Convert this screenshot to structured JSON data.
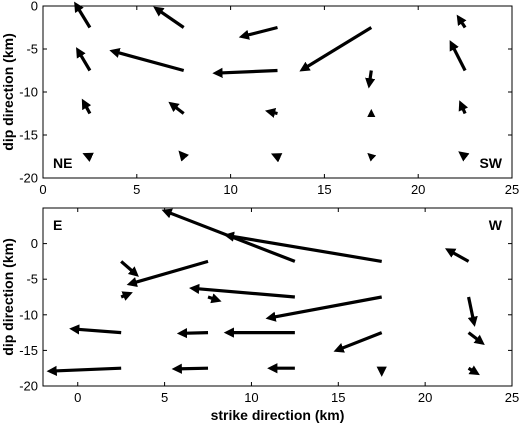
{
  "chart_data": [
    {
      "type": "quiver",
      "xlim": [
        0,
        25
      ],
      "ylim": [
        -20,
        0
      ],
      "x_ticks": [
        0,
        5,
        10,
        15,
        20,
        25
      ],
      "y_ticks": [
        0,
        -5,
        -10,
        -15,
        -20
      ],
      "xlabel": "",
      "ylabel": "dip direction (km)",
      "corner_labels": {
        "left": "NE",
        "right": "SW"
      },
      "arrows": [
        {
          "x": 2.5,
          "y": -2.5,
          "u": -0.7,
          "v": 2.5
        },
        {
          "x": 7.5,
          "y": -2.5,
          "u": -1.4,
          "v": 2.1
        },
        {
          "x": 12.5,
          "y": -2.5,
          "u": -1.8,
          "v": -1.0
        },
        {
          "x": 17.5,
          "y": -2.5,
          "u": -3.6,
          "v": -4.8
        },
        {
          "x": 22.5,
          "y": -2.5,
          "u": -0.3,
          "v": 1.0
        },
        {
          "x": 2.5,
          "y": -7.5,
          "u": -0.6,
          "v": 2.2
        },
        {
          "x": 7.5,
          "y": -7.5,
          "u": -3.7,
          "v": 2.2
        },
        {
          "x": 12.5,
          "y": -7.5,
          "u": -3.2,
          "v": -0.3
        },
        {
          "x": 17.5,
          "y": -7.5,
          "u": -0.1,
          "v": -1.5
        },
        {
          "x": 22.5,
          "y": -7.5,
          "u": -0.7,
          "v": 3.0
        },
        {
          "x": 2.5,
          "y": -12.5,
          "u": -0.3,
          "v": 1.2
        },
        {
          "x": 7.5,
          "y": -12.5,
          "u": -0.6,
          "v": 1.0
        },
        {
          "x": 12.5,
          "y": -12.5,
          "u": -0.4,
          "v": 0.2
        },
        {
          "x": 17.5,
          "y": -12.5,
          "u": 0.0,
          "v": 0.05
        },
        {
          "x": 22.5,
          "y": -12.5,
          "u": -0.2,
          "v": 1.0
        },
        {
          "x": 2.5,
          "y": -17.5,
          "u": -0.15,
          "v": 0.15
        },
        {
          "x": 7.5,
          "y": -17.5,
          "u": -0.1,
          "v": 0.25
        },
        {
          "x": 12.5,
          "y": -17.5,
          "u": -0.1,
          "v": 0.1
        },
        {
          "x": 17.5,
          "y": -17.5,
          "u": -0.05,
          "v": 0.1
        },
        {
          "x": 22.5,
          "y": -17.5,
          "u": -0.15,
          "v": 0.25
        }
      ]
    },
    {
      "type": "quiver",
      "xlim": [
        -2,
        25
      ],
      "ylim": [
        -20,
        5
      ],
      "x_ticks": [
        0,
        5,
        10,
        15,
        20,
        25
      ],
      "y_ticks": [
        0,
        -5,
        -10,
        -15,
        -20
      ],
      "xlabel": "strike direction (km)",
      "ylabel": "dip direction (km)",
      "corner_labels": {
        "left": "E",
        "right": "W"
      },
      "arrows": [
        {
          "x": 2.5,
          "y": -2.5,
          "u": 0.8,
          "v": -1.7
        },
        {
          "x": 7.5,
          "y": -2.5,
          "u": -4.4,
          "v": -3.1
        },
        {
          "x": 12.5,
          "y": -2.5,
          "u": -7.4,
          "v": 7.0
        },
        {
          "x": 17.5,
          "y": -2.5,
          "u": -8.8,
          "v": 3.6
        },
        {
          "x": 22.5,
          "y": -2.5,
          "u": -1.1,
          "v": 1.5
        },
        {
          "x": 2.5,
          "y": -7.5,
          "u": 0.4,
          "v": 0.4
        },
        {
          "x": 7.5,
          "y": -7.5,
          "u": 0.5,
          "v": -0.4
        },
        {
          "x": 12.5,
          "y": -7.5,
          "u": -5.8,
          "v": 1.2
        },
        {
          "x": 17.5,
          "y": -7.5,
          "u": -6.4,
          "v": -2.9
        },
        {
          "x": 22.5,
          "y": -7.5,
          "u": 0.3,
          "v": -3.5
        },
        {
          "x": 2.5,
          "y": -12.5,
          "u": -2.7,
          "v": 0.5
        },
        {
          "x": 7.5,
          "y": -12.5,
          "u": -1.5,
          "v": -0.1
        },
        {
          "x": 12.5,
          "y": -12.5,
          "u": -3.8,
          "v": 0.0
        },
        {
          "x": 17.5,
          "y": -12.5,
          "u": -2.5,
          "v": -2.4
        },
        {
          "x": 22.5,
          "y": -12.5,
          "u": 0.7,
          "v": -1.3
        },
        {
          "x": 2.5,
          "y": -17.5,
          "u": -4.0,
          "v": -0.4
        },
        {
          "x": 7.5,
          "y": -17.5,
          "u": -1.8,
          "v": -0.1
        },
        {
          "x": 12.5,
          "y": -17.5,
          "u": -1.3,
          "v": 0.0
        },
        {
          "x": 17.5,
          "y": -17.5,
          "u": 0.0,
          "v": -0.5
        },
        {
          "x": 22.5,
          "y": -17.5,
          "u": 0.4,
          "v": -0.6
        }
      ]
    }
  ]
}
